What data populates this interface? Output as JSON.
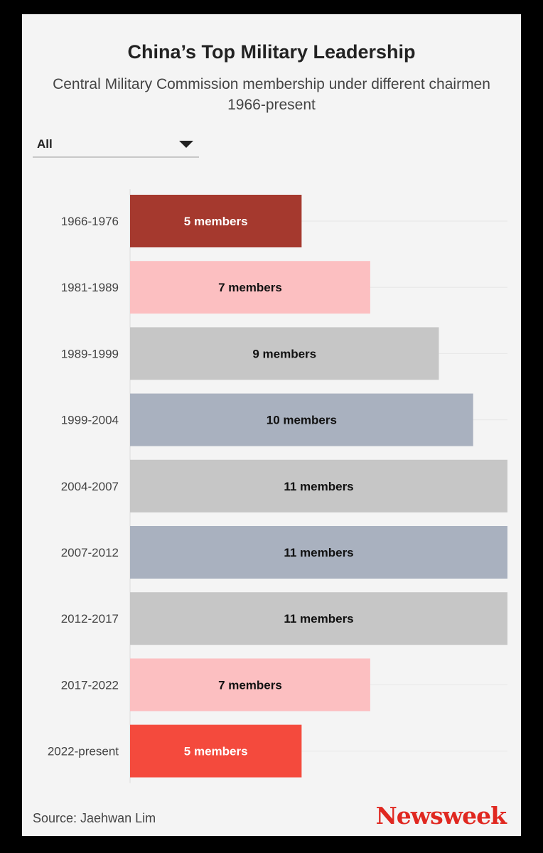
{
  "title": "China’s Top Military Leadership",
  "subtitle": "Central Military Commission membership under different chairmen 1966-present",
  "filter": {
    "selected": "All"
  },
  "source": "Source: Jaehwan Lim",
  "brand": "Newsweek",
  "chart_data": {
    "type": "bar",
    "orientation": "horizontal",
    "categories": [
      "1966-1976",
      "1981-1989",
      "1989-1999",
      "1999-2004",
      "2004-2007",
      "2007-2012",
      "2012-2017",
      "2017-2022",
      "2022-present"
    ],
    "values": [
      5,
      7,
      9,
      10,
      11,
      11,
      11,
      7,
      5
    ],
    "labels": [
      "5 members",
      "7 members",
      "9 members",
      "10 members",
      "11 members",
      "11 members",
      "11 members",
      "7 members",
      "5 members"
    ],
    "colors": [
      "#a5392e",
      "#fcbfc1",
      "#c6c6c6",
      "#a9b1bf",
      "#c6c6c6",
      "#a9b1bf",
      "#c6c6c6",
      "#fcbfc1",
      "#f44a3d"
    ],
    "label_colors": [
      "#ffffff",
      "#111111",
      "#111111",
      "#111111",
      "#111111",
      "#111111",
      "#111111",
      "#111111",
      "#ffffff"
    ],
    "xlim": [
      0,
      11
    ],
    "grid": true,
    "legend": "none"
  }
}
